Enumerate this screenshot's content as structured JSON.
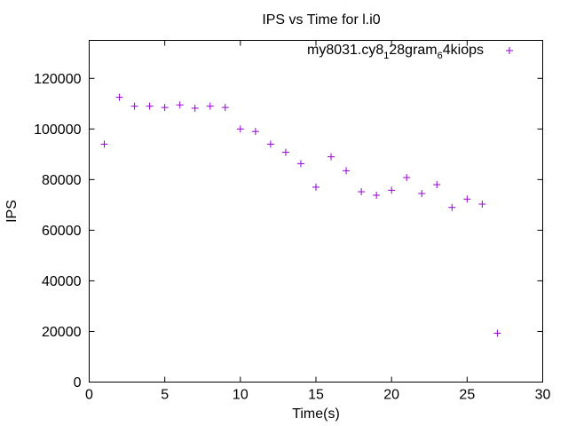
{
  "chart_data": {
    "type": "scatter",
    "title": "IPS vs Time for l.i0",
    "xlabel": "Time(s)",
    "ylabel": "IPS",
    "xlim": [
      0,
      30
    ],
    "ylim": [
      0,
      135000
    ],
    "xticks": [
      0,
      5,
      10,
      15,
      20,
      25,
      30
    ],
    "yticks": [
      0,
      20000,
      40000,
      60000,
      80000,
      100000,
      120000
    ],
    "grid": false,
    "legend_position": "top-right",
    "colors": {
      "series": "#9400d3",
      "axis": "#000000"
    },
    "series": [
      {
        "name": "my8031.cy8_128gram_64kiops",
        "legend_label": {
          "p1": "my8031.cy8",
          "s1": "1",
          "p2": "28gram",
          "s2": "6",
          "p3": "4kiops"
        },
        "marker": "plus",
        "x": [
          1,
          2,
          3,
          4,
          5,
          6,
          7,
          8,
          9,
          10,
          11,
          12,
          13,
          14,
          15,
          16,
          17,
          18,
          19,
          20,
          21,
          22,
          23,
          24,
          25,
          26,
          27
        ],
        "y": [
          94000,
          112500,
          109000,
          109000,
          108500,
          109500,
          108200,
          109000,
          108500,
          100000,
          99000,
          94000,
          90800,
          86300,
          77000,
          89000,
          83500,
          75200,
          73800,
          75800,
          80800,
          74500,
          78000,
          69000,
          72300,
          70300,
          19300
        ]
      }
    ]
  }
}
